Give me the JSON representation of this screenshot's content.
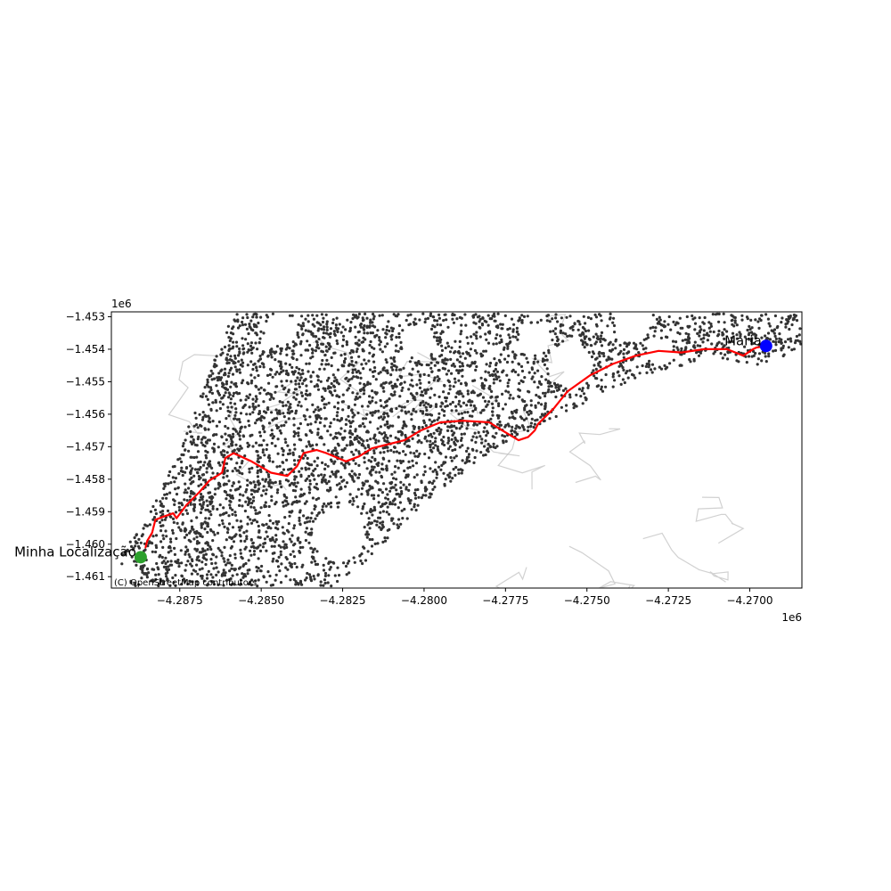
{
  "chart_data": {
    "type": "scatter",
    "title": "",
    "xlabel": "",
    "ylabel": "",
    "x_offset_label": "1e6",
    "y_offset_label": "1e6",
    "xlim": [
      -4.2896,
      -4.2684
    ],
    "ylim": [
      -1.46135,
      -1.45285
    ],
    "x_ticks": [
      -4.2875,
      -4.285,
      -4.2825,
      -4.28,
      -4.2775,
      -4.275,
      -4.2725,
      -4.27
    ],
    "x_tick_labels": [
      "−4.2875",
      "−4.2850",
      "−4.2825",
      "−4.2800",
      "−4.2775",
      "−4.2750",
      "−4.2725",
      "−4.2700"
    ],
    "y_ticks": [
      -1.453,
      -1.454,
      -1.455,
      -1.456,
      -1.457,
      -1.458,
      -1.459,
      -1.46,
      -1.461
    ],
    "y_tick_labels": [
      "−1.453",
      "−1.454",
      "−1.455",
      "−1.456",
      "−1.457",
      "−1.458",
      "−1.459",
      "−1.460",
      "−1.461"
    ],
    "grid": false,
    "route_color": "#ff0000",
    "node_color": "#333333",
    "contour_color": "#bdbdbd",
    "route": {
      "x": [
        -4.28855,
        -4.2885,
        -4.28835,
        -4.28825,
        -4.288,
        -4.2877,
        -4.2876,
        -4.2873,
        -4.2869,
        -4.2866,
        -4.2862,
        -4.2861,
        -4.28585,
        -4.2853,
        -4.2847,
        -4.2842,
        -4.2839,
        -4.2837,
        -4.2833,
        -4.283,
        -4.2824,
        -4.282,
        -4.2816,
        -4.2812,
        -4.2806,
        -4.2801,
        -4.2795,
        -4.2788,
        -4.278,
        -4.2776,
        -4.2771,
        -4.2768,
        -4.2766,
        -4.2765,
        -4.276,
        -4.2756,
        -4.2749,
        -4.2742,
        -4.2735,
        -4.2728,
        -4.2721,
        -4.2714,
        -4.2707,
        -4.2702,
        -4.2699,
        -4.2698,
        -4.2695
      ],
      "y": [
        -1.4601,
        -1.4599,
        -1.45965,
        -1.45925,
        -1.45915,
        -1.45905,
        -1.4592,
        -1.4588,
        -1.4584,
        -1.45805,
        -1.4578,
        -1.45735,
        -1.4572,
        -1.45745,
        -1.4578,
        -1.4579,
        -1.4576,
        -1.4572,
        -1.4571,
        -1.4572,
        -1.45745,
        -1.4573,
        -1.45705,
        -1.45695,
        -1.4568,
        -1.4565,
        -1.45625,
        -1.4562,
        -1.45625,
        -1.4565,
        -1.4568,
        -1.4567,
        -1.4565,
        -1.4563,
        -1.4558,
        -1.4553,
        -1.4548,
        -1.45445,
        -1.4542,
        -1.45405,
        -1.4541,
        -1.454,
        -1.454,
        -1.4542,
        -1.454,
        -1.45395,
        -1.4539
      ]
    },
    "markers": [
      {
        "name": "Minha Localização",
        "x": -4.2887,
        "y": -1.4604,
        "color": "#2ca02c"
      },
      {
        "name": "Maria",
        "x": -4.2695,
        "y": -1.4539,
        "color": "#0000ff"
      }
    ],
    "attribution": "(C) OpenStreetMap contributors"
  }
}
